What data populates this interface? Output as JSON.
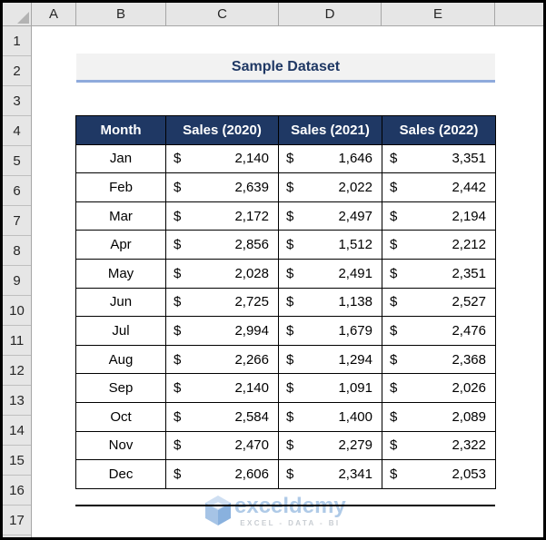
{
  "spreadsheet": {
    "column_headers": [
      "A",
      "B",
      "C",
      "D",
      "E"
    ],
    "row_headers": [
      "1",
      "2",
      "3",
      "4",
      "5",
      "6",
      "7",
      "8",
      "9",
      "10",
      "11",
      "12",
      "13",
      "14",
      "15",
      "16",
      "17"
    ],
    "title": "Sample Dataset",
    "table": {
      "headers": [
        "Month",
        "Sales (2020)",
        "Sales (2021)",
        "Sales (2022)"
      ],
      "currency_symbol": "$",
      "rows": [
        [
          "Jan",
          "2,140",
          "1,646",
          "3,351"
        ],
        [
          "Feb",
          "2,639",
          "2,022",
          "2,442"
        ],
        [
          "Mar",
          "2,172",
          "2,497",
          "2,194"
        ],
        [
          "Apr",
          "2,856",
          "1,512",
          "2,212"
        ],
        [
          "May",
          "2,028",
          "2,491",
          "2,351"
        ],
        [
          "Jun",
          "2,725",
          "1,138",
          "2,527"
        ],
        [
          "Jul",
          "2,994",
          "1,679",
          "2,476"
        ],
        [
          "Aug",
          "2,266",
          "1,294",
          "2,368"
        ],
        [
          "Sep",
          "2,140",
          "1,091",
          "2,026"
        ],
        [
          "Oct",
          "2,584",
          "1,400",
          "2,089"
        ],
        [
          "Nov",
          "2,470",
          "2,279",
          "2,322"
        ],
        [
          "Dec",
          "2,606",
          "2,341",
          "2,053"
        ]
      ]
    },
    "watermark": {
      "brand": "exceldemy",
      "tagline": "EXCEL - DATA - BI"
    },
    "colors": {
      "table_header_bg": "#1F3864",
      "title_text": "#1F3864",
      "title_underline": "#8FAADC",
      "title_bg": "#F2F2F2",
      "watermark_blue": "#A9C6E6"
    }
  }
}
